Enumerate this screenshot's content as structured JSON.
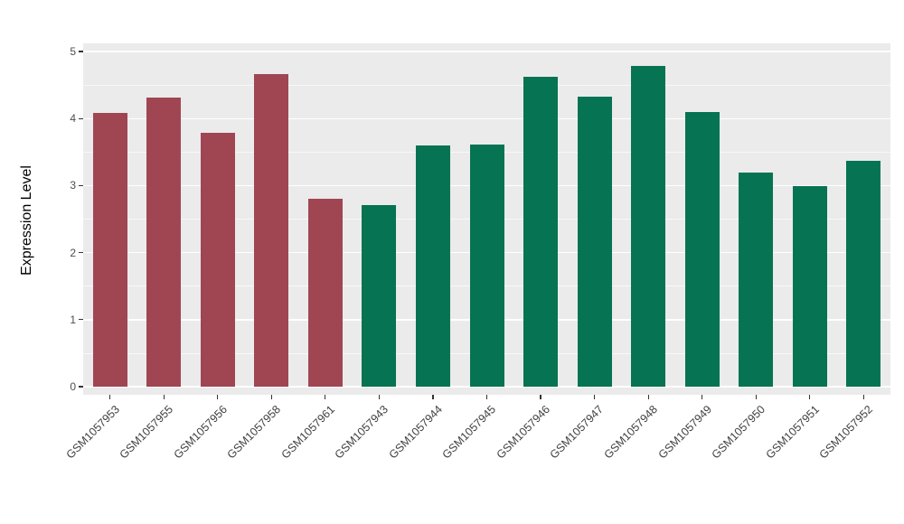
{
  "figure": {
    "background": "#FFFFFF"
  },
  "chart_data": {
    "type": "bar",
    "title": "",
    "xlabel": "",
    "ylabel": "Expression Level",
    "ylim": [
      0,
      5
    ],
    "yticks": [
      0,
      1,
      2,
      3,
      4,
      5
    ],
    "grid": {
      "panel_bg": "#EBEBEB",
      "major_color": "#FFFFFF",
      "minor_color": "#FFFFFF",
      "minor_step": 0.5,
      "orientation": "horizontal"
    },
    "legend": "none",
    "categories": [
      "GSM1057953",
      "GSM1057955",
      "GSM1057956",
      "GSM1057958",
      "GSM1057961",
      "GSM1057943",
      "GSM1057944",
      "GSM1057945",
      "GSM1057946",
      "GSM1057947",
      "GSM1057948",
      "GSM1057949",
      "GSM1057950",
      "GSM1057951",
      "GSM1057952"
    ],
    "values": [
      4.08,
      4.31,
      3.79,
      4.66,
      2.81,
      2.71,
      3.6,
      3.61,
      4.62,
      4.33,
      4.78,
      4.1,
      3.2,
      2.99,
      3.37
    ],
    "bar_groups": [
      "maroon",
      "maroon",
      "maroon",
      "maroon",
      "maroon",
      "green",
      "green",
      "green",
      "green",
      "green",
      "green",
      "green",
      "green",
      "green",
      "green"
    ],
    "group_colors": {
      "maroon": "#A04653",
      "green": "#067352"
    }
  }
}
